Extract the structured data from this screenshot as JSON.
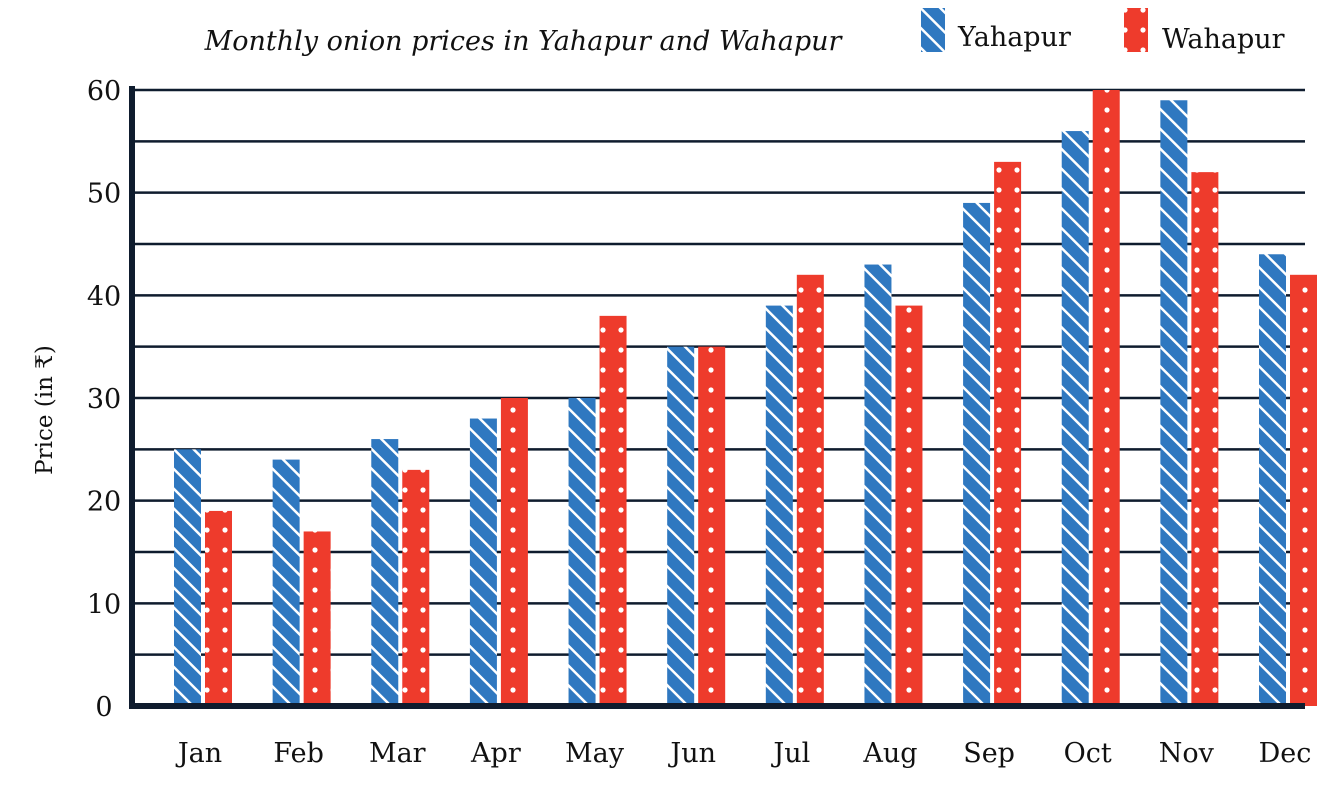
{
  "chart_data": {
    "type": "bar",
    "title": "Monthly onion prices in Yahapur and Wahapur",
    "ylabel": "Price (in ₹)",
    "xlabel": "",
    "ylim": [
      0,
      60
    ],
    "yticks": [
      0,
      10,
      20,
      30,
      40,
      50,
      60
    ],
    "grid": true,
    "legend_position": "top-right",
    "categories": [
      "Jan",
      "Feb",
      "Mar",
      "Apr",
      "May",
      "Jun",
      "Jul",
      "Aug",
      "Sep",
      "Oct",
      "Nov",
      "Dec"
    ],
    "series": [
      {
        "name": "Yahapur",
        "color": "#2f78c0",
        "pattern": "diagonal-stripes",
        "values": [
          25,
          24,
          26,
          28,
          30,
          35,
          39,
          43,
          49,
          56,
          59,
          44
        ]
      },
      {
        "name": "Wahapur",
        "color": "#ee3b2c",
        "pattern": "dots",
        "values": [
          19,
          17,
          23,
          30,
          38,
          35,
          42,
          39,
          53,
          60,
          52,
          42
        ]
      }
    ]
  }
}
